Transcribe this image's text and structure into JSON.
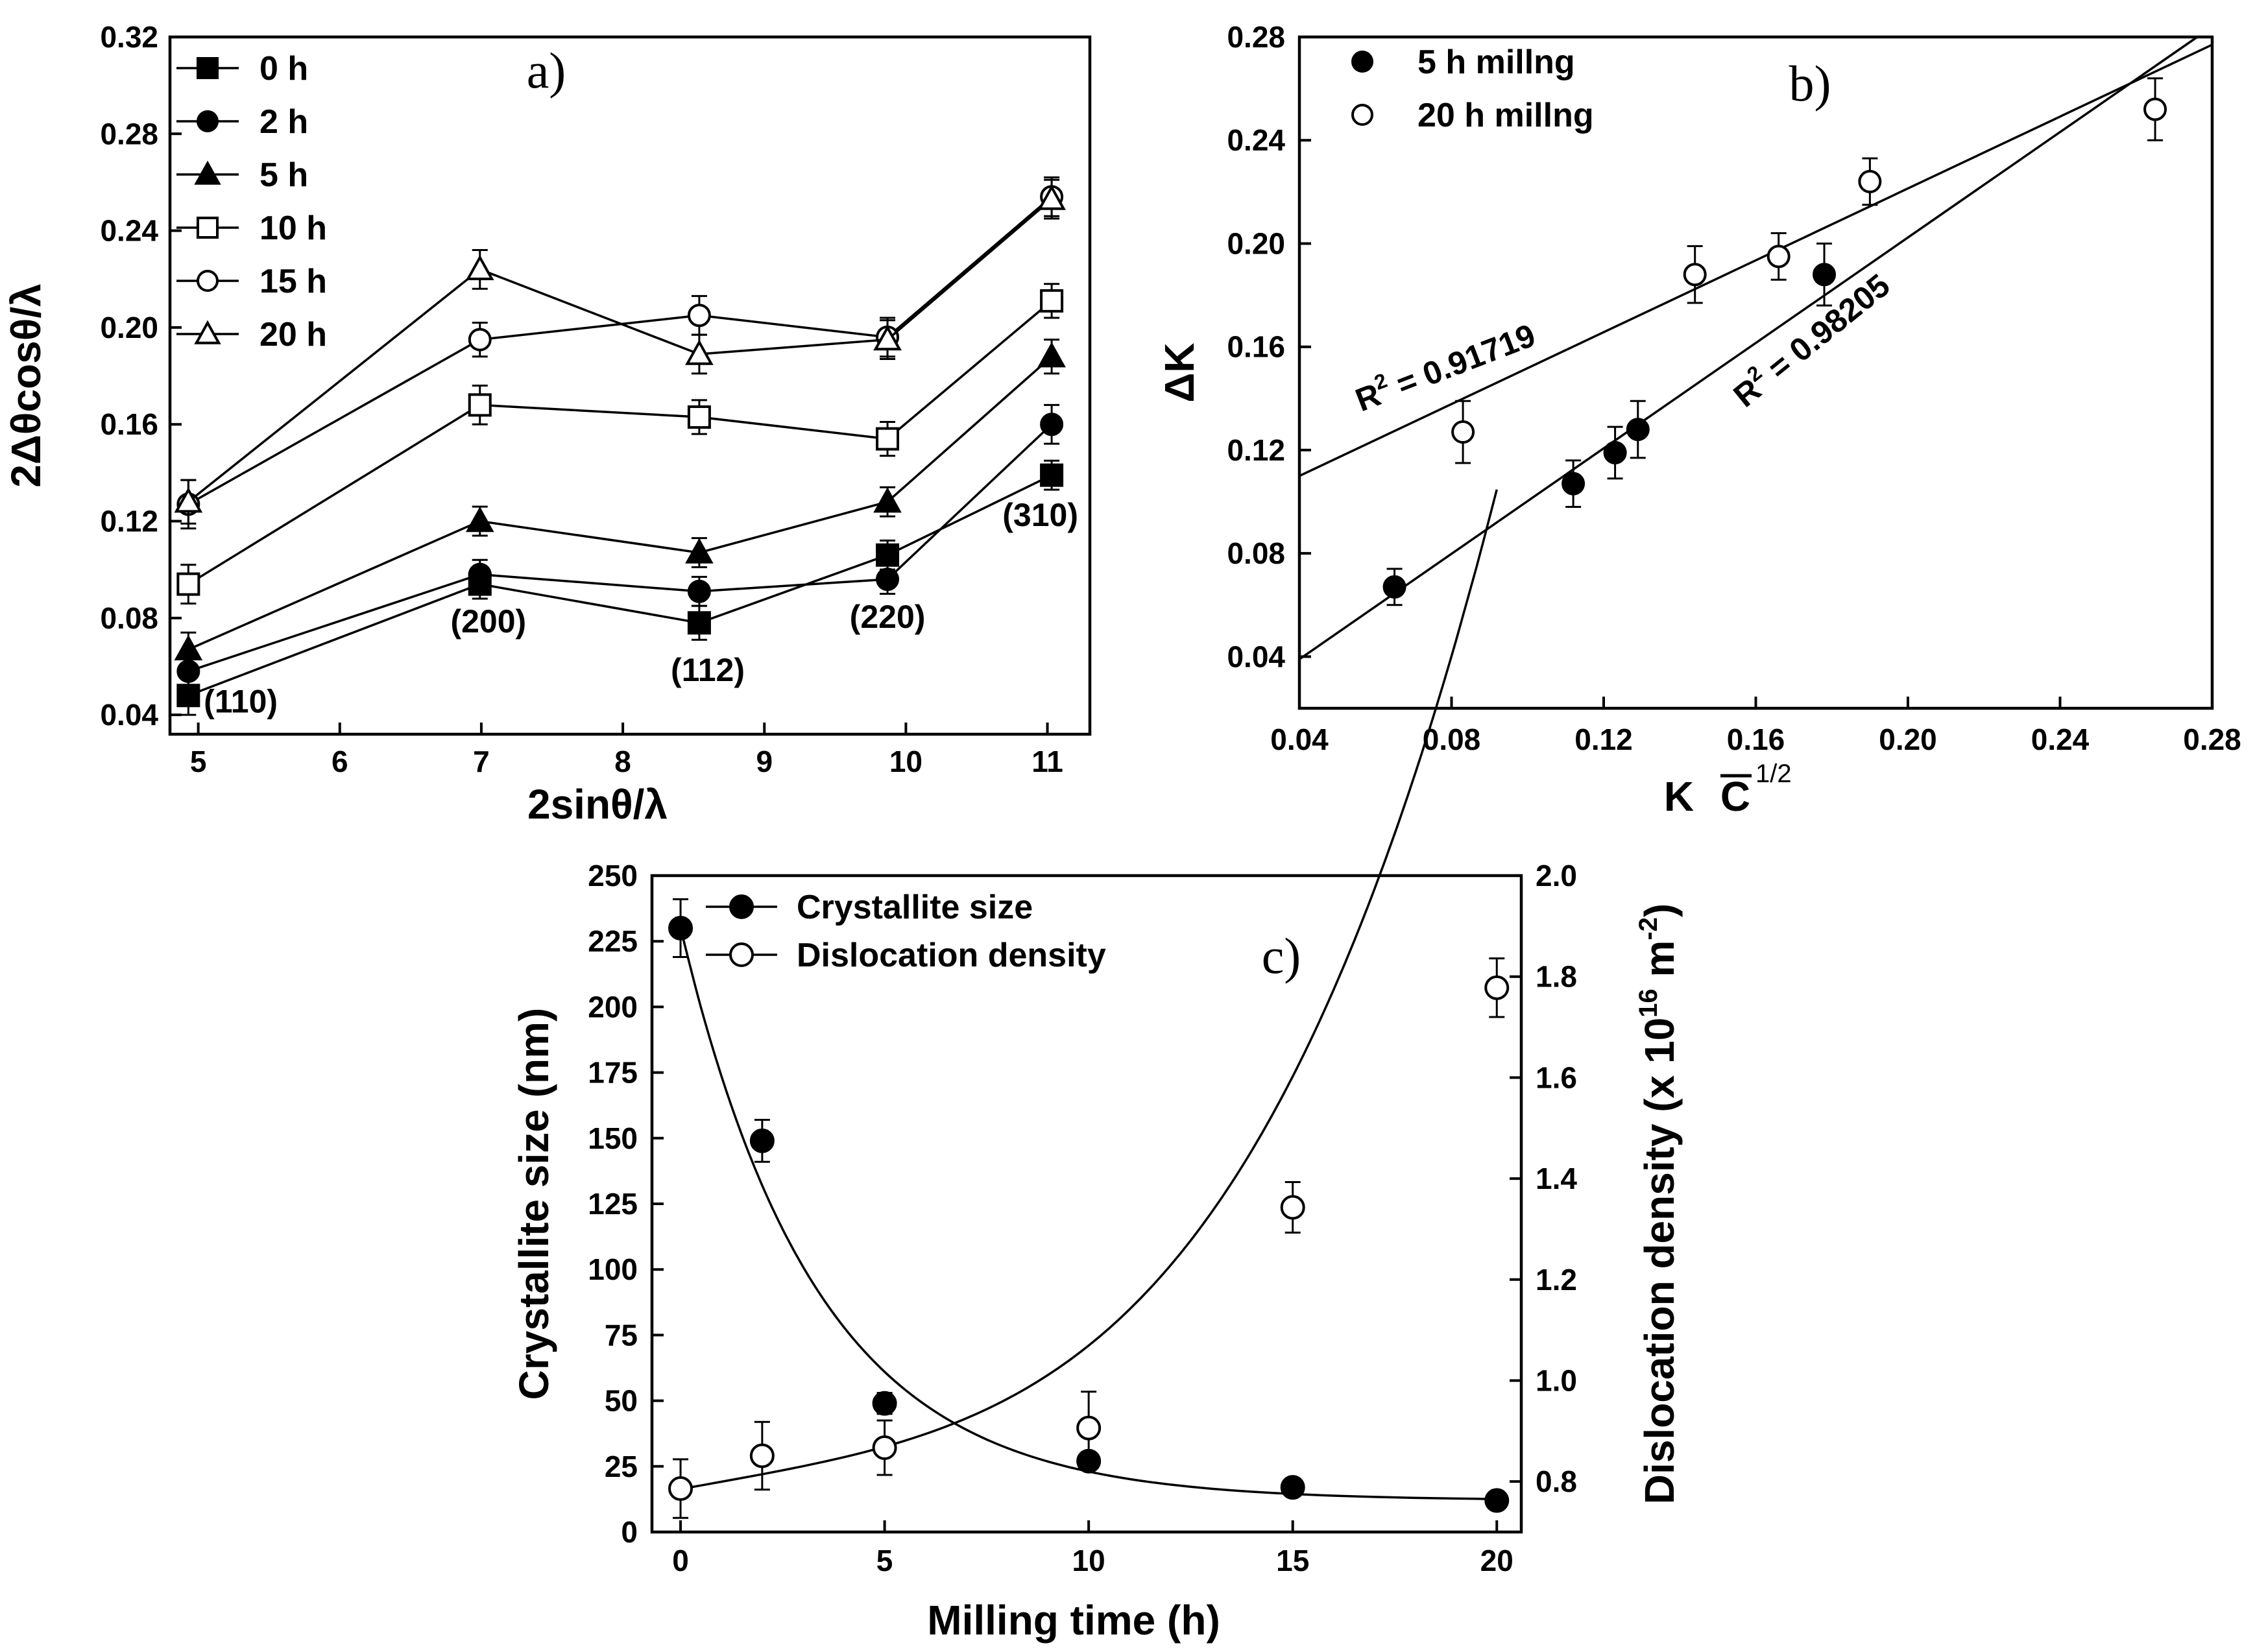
{
  "chart_data": [
    {
      "panel": "a)",
      "type": "line",
      "xlabel": "2sinθ/λ",
      "ylabel": "2Δθcosθ/λ",
      "xlim": [
        4.8,
        11.3
      ],
      "ylim": [
        0.032,
        0.32
      ],
      "xticks": [
        5,
        6,
        7,
        8,
        9,
        10,
        11
      ],
      "yticks": [
        0.04,
        0.08,
        0.12,
        0.16,
        0.2,
        0.24,
        0.28,
        0.32
      ],
      "ytick_labels": [
        "0.04",
        "0.08",
        "0.12",
        "0.16",
        "0.20",
        "0.24",
        "0.28",
        "0.32"
      ],
      "x": [
        4.93,
        6.99,
        8.54,
        9.87,
        11.03
      ],
      "series": [
        {
          "name": "0 h",
          "marker": "square-filled",
          "values": [
            0.048,
            0.094,
            0.078,
            0.106,
            0.139
          ],
          "err": [
            0.008,
            0.006,
            0.007,
            0.006,
            0.006
          ]
        },
        {
          "name": "2 h",
          "marker": "circle-filled",
          "values": [
            0.058,
            0.098,
            0.091,
            0.096,
            0.16
          ],
          "err": [
            0.007,
            0.006,
            0.006,
            0.006,
            0.008
          ]
        },
        {
          "name": "5 h",
          "marker": "triangle-filled",
          "values": [
            0.067,
            0.12,
            0.107,
            0.128,
            0.188
          ],
          "err": [
            0.007,
            0.006,
            0.006,
            0.006,
            0.007
          ]
        },
        {
          "name": "10 h",
          "marker": "square-open",
          "values": [
            0.094,
            0.168,
            0.163,
            0.154,
            0.211
          ],
          "err": [
            0.008,
            0.008,
            0.007,
            0.007,
            0.007
          ]
        },
        {
          "name": "15 h",
          "marker": "circle-open",
          "values": [
            0.127,
            0.195,
            0.205,
            0.196,
            0.254
          ],
          "err": [
            0.01,
            0.007,
            0.008,
            0.008,
            0.008
          ]
        },
        {
          "name": "20 h",
          "marker": "triangle-open",
          "values": [
            0.128,
            0.224,
            0.189,
            0.195,
            0.253
          ],
          "err": [
            0.009,
            0.008,
            0.008,
            0.008,
            0.008
          ]
        }
      ],
      "annotations": [
        {
          "text": "(110)",
          "x": 5.3,
          "y": 0.041
        },
        {
          "text": "(200)",
          "x": 7.05,
          "y": 0.074
        },
        {
          "text": "(112)",
          "x": 8.6,
          "y": 0.054
        },
        {
          "text": "(220)",
          "x": 9.87,
          "y": 0.076
        },
        {
          "text": "(310)",
          "x": 10.95,
          "y": 0.118
        }
      ]
    },
    {
      "panel": "b)",
      "type": "scatter",
      "xlabel_main": "K",
      "xlabel_c": "C",
      "xlabel_sup": "1/2",
      "ylabel": "ΔK",
      "xlim": [
        0.04,
        0.28
      ],
      "ylim": [
        0.02,
        0.28
      ],
      "xticks": [
        0.04,
        0.08,
        0.12,
        0.16,
        0.2,
        0.24,
        0.28
      ],
      "xtick_labels": [
        "0.04",
        "0.08",
        "0.12",
        "0.16",
        "0.20",
        "0.24",
        "0.28"
      ],
      "yticks": [
        0.04,
        0.08,
        0.12,
        0.16,
        0.2,
        0.24,
        0.28
      ],
      "ytick_labels": [
        "0.04",
        "0.08",
        "0.12",
        "0.16",
        "0.20",
        "0.24",
        "0.28"
      ],
      "series": [
        {
          "name": "5 h millng",
          "marker": "circle-filled",
          "x": [
            0.065,
            0.112,
            0.123,
            0.129,
            0.178
          ],
          "y": [
            0.067,
            0.107,
            0.119,
            0.128,
            0.188
          ],
          "err": [
            0.007,
            0.009,
            0.01,
            0.011,
            0.012
          ],
          "fit": {
            "x": [
              0.04,
              0.28
            ],
            "y": [
              0.039,
              0.284
            ]
          },
          "r2_label": "R",
          "r2_sup": "2",
          "r2_value": " = 0.98205"
        },
        {
          "name": "20 h millng",
          "marker": "circle-open",
          "x": [
            0.083,
            0.144,
            0.166,
            0.19,
            0.265
          ],
          "y": [
            0.127,
            0.188,
            0.195,
            0.224,
            0.252
          ],
          "err": [
            0.012,
            0.011,
            0.009,
            0.009,
            0.012
          ],
          "fit": {
            "x": [
              0.04,
              0.28
            ],
            "y": [
              0.11,
              0.277
            ]
          },
          "r2_label": "R",
          "r2_sup": "2",
          "r2_value": " = 0.91719"
        }
      ]
    },
    {
      "panel": "c)",
      "type": "scatter-dual-axis",
      "xlabel": "Milling time (h)",
      "ylabel_left": "Crystallite size (nm)",
      "ylabel_right_prefix": "Dislocation density (x 10",
      "ylabel_right_exp": "16",
      "ylabel_right_unit": " m",
      "ylabel_right_unit_exp": "-2",
      "ylabel_right_close": ")",
      "xlim": [
        -0.7,
        20.6
      ],
      "ylim_left": [
        0,
        250
      ],
      "ylim_right": [
        0.7,
        2.0
      ],
      "xticks": [
        0,
        5,
        10,
        15,
        20
      ],
      "yticks_left": [
        0,
        25,
        50,
        75,
        100,
        125,
        150,
        175,
        200,
        225,
        250
      ],
      "yticks_right": [
        0.8,
        1.0,
        1.2,
        1.4,
        1.6,
        1.8,
        2.0
      ],
      "ytick_right_labels": [
        "0.8",
        "1.0",
        "1.2",
        "1.4",
        "1.6",
        "1.8",
        "2.0"
      ],
      "series": [
        {
          "name": "Crystallite size",
          "axis": "left",
          "marker": "circle-filled",
          "x": [
            0,
            2,
            5,
            10,
            15,
            20
          ],
          "y": [
            230,
            149,
            49,
            27,
            17,
            12
          ],
          "err": [
            11,
            8,
            4,
            0,
            0,
            0
          ]
        },
        {
          "name": "Dislocation density",
          "axis": "right",
          "marker": "circle-open",
          "x": [
            0,
            2,
            5,
            10,
            15,
            20
          ],
          "y": [
            0.786,
            0.851,
            0.867,
            0.906,
            1.343,
            1.778
          ],
          "err": [
            0.058,
            0.067,
            0.054,
            0.072,
            0.05,
            0.058
          ]
        }
      ]
    }
  ]
}
